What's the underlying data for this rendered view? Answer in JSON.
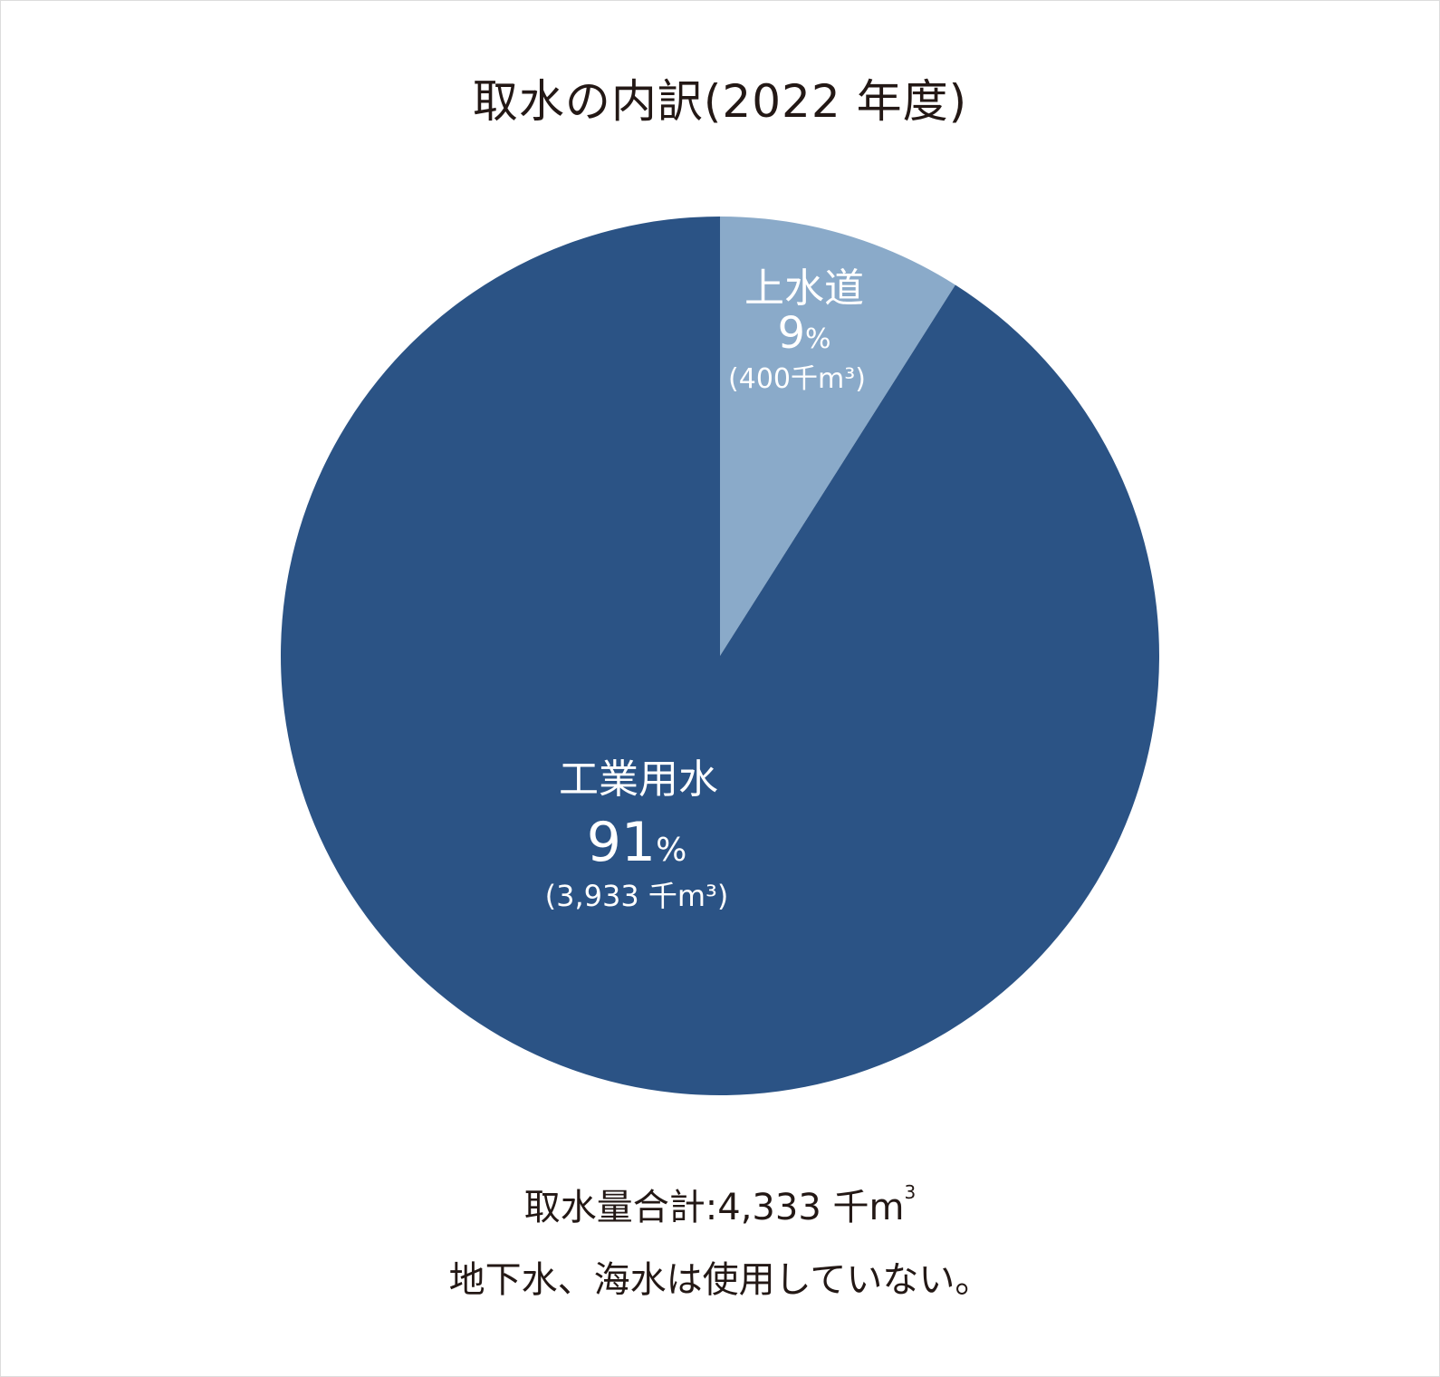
{
  "chart_data": {
    "type": "pie",
    "title": "取水の内訳(2022 年度)",
    "slices": [
      {
        "label": "上水道",
        "percent": 9,
        "percent_unit": "%",
        "amount": "(400千m³)",
        "value": 400,
        "color": "#8aaac9"
      },
      {
        "label": "工業用水",
        "percent": 91,
        "percent_unit": "%",
        "amount": "(3,933 千m³)",
        "value": 3933,
        "color": "#2b5385"
      }
    ],
    "start_angle_deg": 0,
    "direction": "clockwise"
  },
  "footer": {
    "total_label": "取水量合計:",
    "total_value": "4,333",
    "total_unit": "千m",
    "total_unit_sup": "3",
    "note": "地下水、海水は使用していない。"
  }
}
